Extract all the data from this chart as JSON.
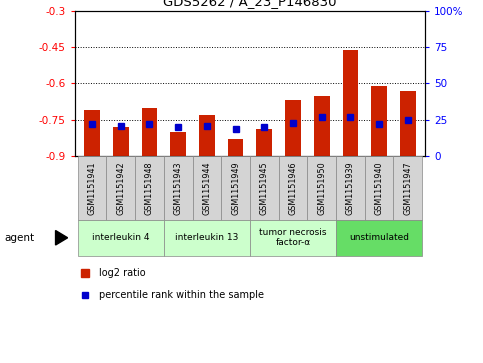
{
  "title": "GDS5262 / A_23_P146830",
  "samples": [
    "GSM1151941",
    "GSM1151942",
    "GSM1151948",
    "GSM1151943",
    "GSM1151944",
    "GSM1151949",
    "GSM1151945",
    "GSM1151946",
    "GSM1151950",
    "GSM1151939",
    "GSM1151940",
    "GSM1151947"
  ],
  "log2_ratios": [
    -0.71,
    -0.78,
    -0.7,
    -0.8,
    -0.73,
    -0.83,
    -0.79,
    -0.67,
    -0.65,
    -0.46,
    -0.61,
    -0.63
  ],
  "percentile_ranks": [
    22,
    21,
    22,
    20,
    21,
    19,
    20,
    23,
    27,
    27,
    22,
    25
  ],
  "agents": [
    {
      "label": "interleukin 4",
      "start": 0,
      "end": 3,
      "color": "#ccffcc"
    },
    {
      "label": "interleukin 13",
      "start": 3,
      "end": 6,
      "color": "#ccffcc"
    },
    {
      "label": "tumor necrosis\nfactor-α",
      "start": 6,
      "end": 9,
      "color": "#ccffcc"
    },
    {
      "label": "unstimulated",
      "start": 9,
      "end": 12,
      "color": "#66dd66"
    }
  ],
  "ylim_left": [
    -0.9,
    -0.3
  ],
  "ylim_right": [
    0,
    100
  ],
  "yticks_left": [
    -0.9,
    -0.75,
    -0.6,
    -0.45,
    -0.3
  ],
  "yticks_right": [
    0,
    25,
    50,
    75,
    100
  ],
  "bar_color": "#cc2200",
  "percentile_color": "#0000cc",
  "grid_color": "#000000",
  "legend_log2": "log2 ratio",
  "legend_pct": "percentile rank within the sample",
  "agent_label": "agent"
}
